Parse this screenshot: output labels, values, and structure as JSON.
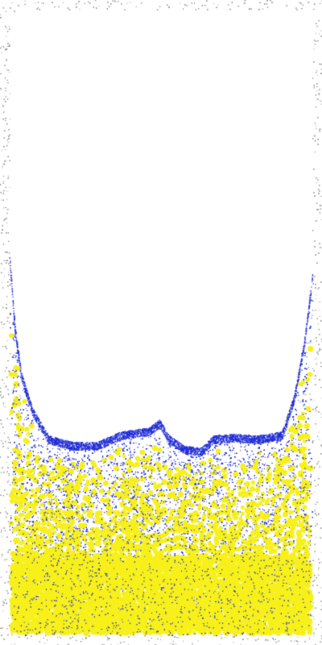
{
  "scene": {
    "description_free": true,
    "colors": {
      "background": "#ffffff",
      "wall_particles": "#9a9a9a",
      "blue_particles": "#1f2bd6",
      "yellow_particles": "#f7f01a"
    },
    "materials": [
      {
        "name": "wall",
        "color_key": "wall_particles"
      },
      {
        "name": "blue",
        "color_key": "blue_particles"
      },
      {
        "name": "yellow",
        "color_key": "yellow_particles"
      }
    ]
  }
}
